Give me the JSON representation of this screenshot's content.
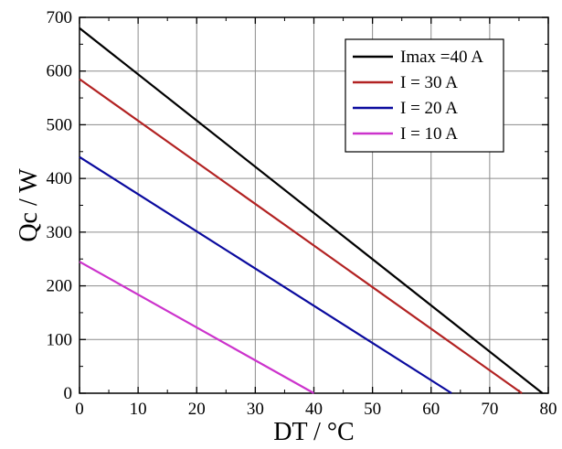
{
  "chart_data": {
    "type": "line",
    "title": "",
    "xlabel": "DT / °C",
    "ylabel": "Qc / W",
    "xlim": [
      0,
      80
    ],
    "ylim": [
      0,
      700
    ],
    "x_ticks": [
      0,
      10,
      20,
      30,
      40,
      50,
      60,
      70,
      80
    ],
    "y_ticks": [
      0,
      100,
      200,
      300,
      400,
      500,
      600,
      700
    ],
    "x_tick_labels": [
      "0",
      "10",
      "20",
      "30",
      "40",
      "50",
      "60",
      "70",
      "80"
    ],
    "y_tick_labels": [
      "0",
      "100",
      "200",
      "300",
      "400",
      "500",
      "600",
      "700"
    ],
    "grid": true,
    "legend_position": "top-right",
    "series": [
      {
        "name": "Imax =40 A",
        "color": "#000000",
        "x": [
          0,
          79
        ],
        "y": [
          680,
          0
        ]
      },
      {
        "name": "I = 30 A",
        "color": "#b22222",
        "x": [
          0,
          75.5
        ],
        "y": [
          585,
          0
        ]
      },
      {
        "name": "I = 20 A",
        "color": "#0a0a9e",
        "x": [
          0,
          63.5
        ],
        "y": [
          440,
          0
        ]
      },
      {
        "name": "I = 10 A",
        "color": "#cc33cc",
        "x": [
          0,
          40
        ],
        "y": [
          245,
          0
        ]
      }
    ]
  }
}
